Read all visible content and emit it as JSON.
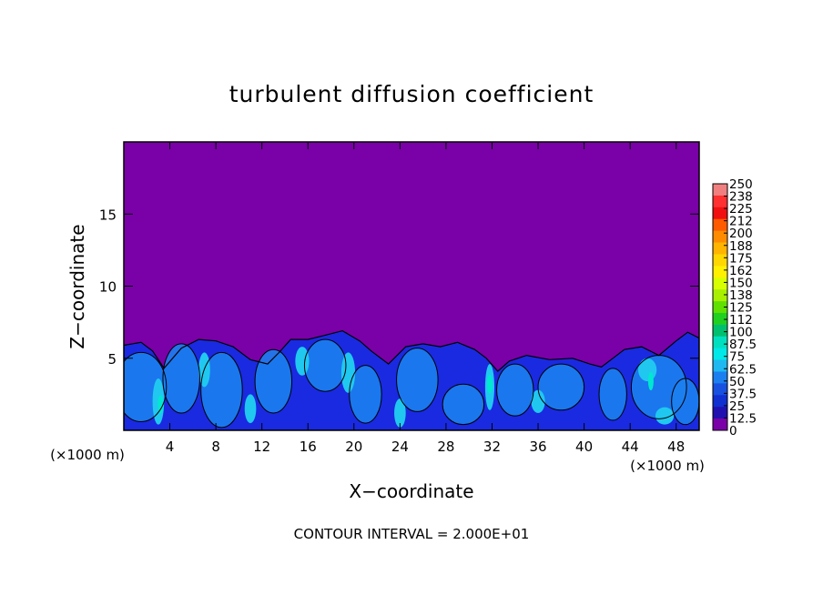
{
  "chart_data": {
    "type": "heatmap",
    "title": "turbulent diffusion coefficient",
    "xlabel": "X−coordinate",
    "ylabel": "Z−coordinate",
    "x_unit_left": "(×1000 m)",
    "x_unit_right": "(×1000 m)",
    "footer": "CONTOUR INTERVAL = 2.000E+01",
    "xlim": [
      0,
      50
    ],
    "ylim": [
      0,
      20
    ],
    "x_ticks": [
      4,
      8,
      12,
      16,
      20,
      24,
      28,
      32,
      36,
      40,
      44,
      48
    ],
    "y_ticks": [
      5,
      10,
      15
    ],
    "colorbar": {
      "labels": [
        "250",
        "238",
        "225",
        "212",
        "200",
        "188",
        "175",
        "162",
        "150",
        "138",
        "125",
        "112",
        "100",
        "87.5",
        "75",
        "62.5",
        "50",
        "37.5",
        "25",
        "12.5",
        "0"
      ],
      "colors": [
        "#f08080",
        "#ff3030",
        "#f01010",
        "#ff5a00",
        "#ff8c00",
        "#ffb400",
        "#ffd700",
        "#fff000",
        "#d8ff00",
        "#a8f000",
        "#60e000",
        "#20d020",
        "#00c070",
        "#00e0c0",
        "#00e8e8",
        "#20b8f0",
        "#1c7ff0",
        "#1850e0",
        "#1030d0",
        "#2010b0",
        "#7a00a8"
      ]
    },
    "background_value": 0,
    "turbulent_layer_top_z": 6,
    "colors": {
      "background": "#7a00a8",
      "low": "#1a2ae0",
      "mid": "#1c7ff0",
      "high": "#20c8f0",
      "peak": "#00e8d0"
    }
  }
}
